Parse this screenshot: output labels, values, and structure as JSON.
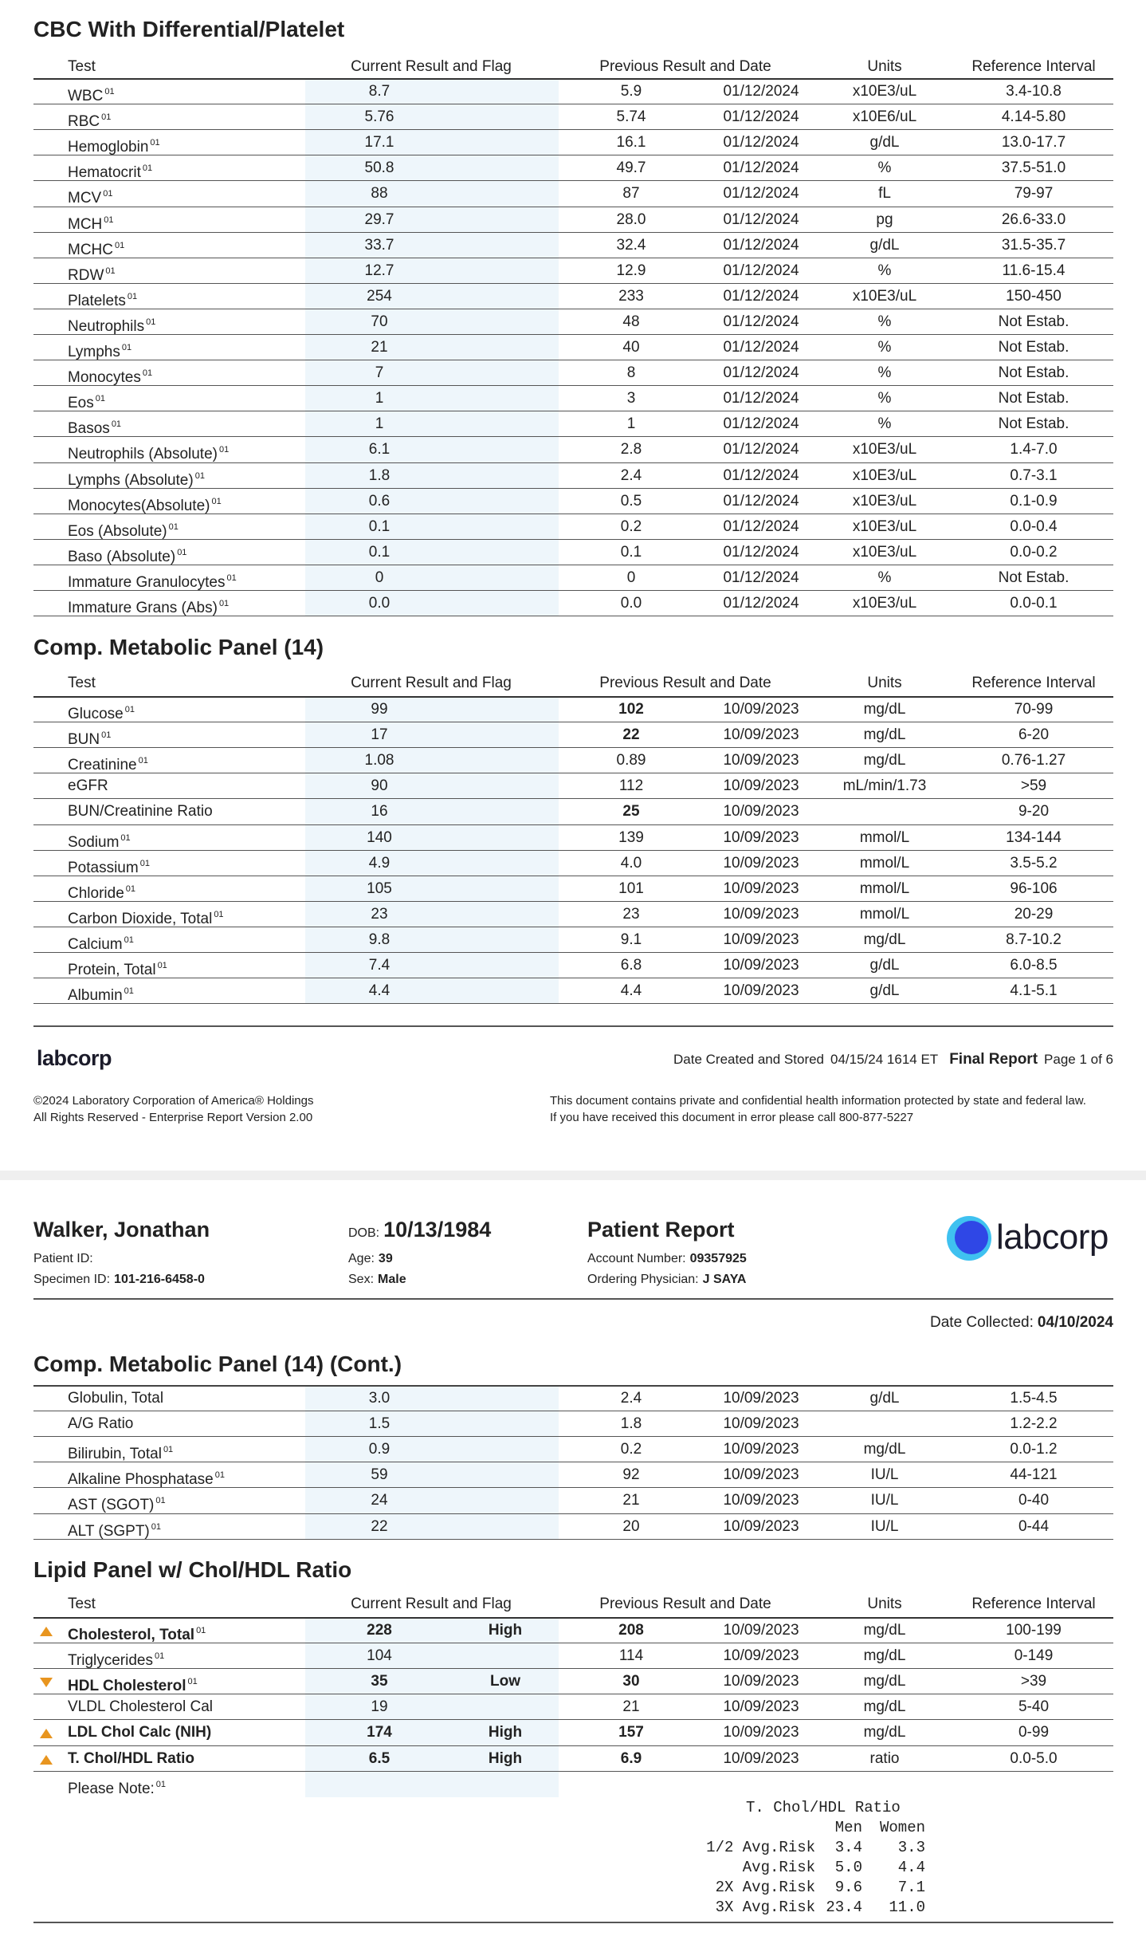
{
  "sections": [
    {
      "title": "CBC With Differential/Platelet",
      "header": [
        "Test",
        "Current Result and Flag",
        "Previous Result and Date",
        "Units",
        "Reference Interval"
      ],
      "rows": [
        {
          "test": "WBC",
          "note": "01",
          "current": "8.7",
          "prev": "5.9",
          "date": "01/12/2024",
          "units": "x10E3/uL",
          "ref": "3.4-10.8"
        },
        {
          "test": "RBC",
          "note": "01",
          "current": "5.76",
          "prev": "5.74",
          "date": "01/12/2024",
          "units": "x10E6/uL",
          "ref": "4.14-5.80"
        },
        {
          "test": "Hemoglobin",
          "note": "01",
          "current": "17.1",
          "prev": "16.1",
          "date": "01/12/2024",
          "units": "g/dL",
          "ref": "13.0-17.7"
        },
        {
          "test": "Hematocrit",
          "note": "01",
          "current": "50.8",
          "prev": "49.7",
          "date": "01/12/2024",
          "units": "%",
          "ref": "37.5-51.0"
        },
        {
          "test": "MCV",
          "note": "01",
          "current": "88",
          "prev": "87",
          "date": "01/12/2024",
          "units": "fL",
          "ref": "79-97"
        },
        {
          "test": "MCH",
          "note": "01",
          "current": "29.7",
          "prev": "28.0",
          "date": "01/12/2024",
          "units": "pg",
          "ref": "26.6-33.0"
        },
        {
          "test": "MCHC",
          "note": "01",
          "current": "33.7",
          "prev": "32.4",
          "date": "01/12/2024",
          "units": "g/dL",
          "ref": "31.5-35.7"
        },
        {
          "test": "RDW",
          "note": "01",
          "current": "12.7",
          "prev": "12.9",
          "date": "01/12/2024",
          "units": "%",
          "ref": "11.6-15.4"
        },
        {
          "test": "Platelets",
          "note": "01",
          "current": "254",
          "prev": "233",
          "date": "01/12/2024",
          "units": "x10E3/uL",
          "ref": "150-450"
        },
        {
          "test": "Neutrophils",
          "note": "01",
          "current": "70",
          "prev": "48",
          "date": "01/12/2024",
          "units": "%",
          "ref": "Not Estab."
        },
        {
          "test": "Lymphs",
          "note": "01",
          "current": "21",
          "prev": "40",
          "date": "01/12/2024",
          "units": "%",
          "ref": "Not Estab."
        },
        {
          "test": "Monocytes",
          "note": "01",
          "current": "7",
          "prev": "8",
          "date": "01/12/2024",
          "units": "%",
          "ref": "Not Estab."
        },
        {
          "test": "Eos",
          "note": "01",
          "current": "1",
          "prev": "3",
          "date": "01/12/2024",
          "units": "%",
          "ref": "Not Estab."
        },
        {
          "test": "Basos",
          "note": "01",
          "current": "1",
          "prev": "1",
          "date": "01/12/2024",
          "units": "%",
          "ref": "Not Estab."
        },
        {
          "test": "Neutrophils (Absolute)",
          "note": "01",
          "current": "6.1",
          "prev": "2.8",
          "date": "01/12/2024",
          "units": "x10E3/uL",
          "ref": "1.4-7.0"
        },
        {
          "test": "Lymphs (Absolute)",
          "note": "01",
          "current": "1.8",
          "prev": "2.4",
          "date": "01/12/2024",
          "units": "x10E3/uL",
          "ref": "0.7-3.1"
        },
        {
          "test": "Monocytes(Absolute)",
          "note": "01",
          "current": "0.6",
          "prev": "0.5",
          "date": "01/12/2024",
          "units": "x10E3/uL",
          "ref": "0.1-0.9"
        },
        {
          "test": "Eos (Absolute)",
          "note": "01",
          "current": "0.1",
          "prev": "0.2",
          "date": "01/12/2024",
          "units": "x10E3/uL",
          "ref": "0.0-0.4"
        },
        {
          "test": "Baso (Absolute)",
          "note": "01",
          "current": "0.1",
          "prev": "0.1",
          "date": "01/12/2024",
          "units": "x10E3/uL",
          "ref": "0.0-0.2"
        },
        {
          "test": "Immature Granulocytes",
          "note": "01",
          "current": "0",
          "prev": "0",
          "date": "01/12/2024",
          "units": "%",
          "ref": "Not Estab."
        },
        {
          "test": "Immature Grans (Abs)",
          "note": "01",
          "current": "0.0",
          "prev": "0.0",
          "date": "01/12/2024",
          "units": "x10E3/uL",
          "ref": "0.0-0.1"
        }
      ]
    },
    {
      "title": "Comp. Metabolic Panel (14)",
      "header": [
        "Test",
        "Current Result and Flag",
        "Previous Result and Date",
        "Units",
        "Reference Interval"
      ],
      "rows": [
        {
          "test": "Glucose",
          "note": "01",
          "current": "99",
          "prev": "102",
          "prev_bold": true,
          "date": "10/09/2023",
          "units": "mg/dL",
          "ref": "70-99"
        },
        {
          "test": "BUN",
          "note": "01",
          "current": "17",
          "prev": "22",
          "prev_bold": true,
          "date": "10/09/2023",
          "units": "mg/dL",
          "ref": "6-20"
        },
        {
          "test": "Creatinine",
          "note": "01",
          "current": "1.08",
          "prev": "0.89",
          "date": "10/09/2023",
          "units": "mg/dL",
          "ref": "0.76-1.27"
        },
        {
          "test": "eGFR",
          "current": "90",
          "prev": "112",
          "date": "10/09/2023",
          "units": "mL/min/1.73",
          "ref": ">59"
        },
        {
          "test": "BUN/Creatinine Ratio",
          "current": "16",
          "prev": "25",
          "prev_bold": true,
          "date": "10/09/2023",
          "ref": "9-20"
        },
        {
          "test": "Sodium",
          "note": "01",
          "current": "140",
          "prev": "139",
          "date": "10/09/2023",
          "units": "mmol/L",
          "ref": "134-144"
        },
        {
          "test": "Potassium",
          "note": "01",
          "current": "4.9",
          "prev": "4.0",
          "date": "10/09/2023",
          "units": "mmol/L",
          "ref": "3.5-5.2"
        },
        {
          "test": "Chloride",
          "note": "01",
          "current": "105",
          "prev": "101",
          "date": "10/09/2023",
          "units": "mmol/L",
          "ref": "96-106"
        },
        {
          "test": "Carbon Dioxide, Total",
          "note": "01",
          "current": "23",
          "prev": "23",
          "date": "10/09/2023",
          "units": "mmol/L",
          "ref": "20-29"
        },
        {
          "test": "Calcium",
          "note": "01",
          "current": "9.8",
          "prev": "9.1",
          "date": "10/09/2023",
          "units": "mg/dL",
          "ref": "8.7-10.2"
        },
        {
          "test": "Protein, Total",
          "note": "01",
          "current": "7.4",
          "prev": "6.8",
          "date": "10/09/2023",
          "units": "g/dL",
          "ref": "6.0-8.5"
        },
        {
          "test": "Albumin",
          "note": "01",
          "current": "4.4",
          "prev": "4.4",
          "date": "10/09/2023",
          "units": "g/dL",
          "ref": "4.1-5.1"
        }
      ]
    },
    {
      "title": "Comp. Metabolic Panel (14) (Cont.)",
      "rows": [
        {
          "test": "Globulin, Total",
          "current": "3.0",
          "prev": "2.4",
          "date": "10/09/2023",
          "units": "g/dL",
          "ref": "1.5-4.5"
        },
        {
          "test": "A/G Ratio",
          "current": "1.5",
          "prev": "1.8",
          "date": "10/09/2023",
          "ref": "1.2-2.2"
        },
        {
          "test": "Bilirubin, Total",
          "note": "01",
          "current": "0.9",
          "prev": "0.2",
          "date": "10/09/2023",
          "units": "mg/dL",
          "ref": "0.0-1.2"
        },
        {
          "test": "Alkaline Phosphatase",
          "note": "01",
          "current": "59",
          "prev": "92",
          "date": "10/09/2023",
          "units": "IU/L",
          "ref": "44-121"
        },
        {
          "test": "AST (SGOT)",
          "note": "01",
          "current": "24",
          "prev": "21",
          "date": "10/09/2023",
          "units": "IU/L",
          "ref": "0-40"
        },
        {
          "test": "ALT (SGPT)",
          "note": "01",
          "current": "22",
          "prev": "20",
          "date": "10/09/2023",
          "units": "IU/L",
          "ref": "0-44"
        }
      ]
    },
    {
      "title": "Lipid Panel w/ Chol/HDL Ratio",
      "header": [
        "Test",
        "Current Result and Flag",
        "Previous Result and Date",
        "Units",
        "Reference Interval"
      ],
      "rows": [
        {
          "test": "Cholesterol, Total",
          "note": "01",
          "current": "228",
          "flag": "High",
          "arrow": "up",
          "prev": "208",
          "prev_bold": true,
          "date": "10/09/2023",
          "units": "mg/dL",
          "ref": "100-199"
        },
        {
          "test": "Triglycerides",
          "note": "01",
          "current": "104",
          "prev": "114",
          "date": "10/09/2023",
          "units": "mg/dL",
          "ref": "0-149"
        },
        {
          "test": "HDL Cholesterol",
          "note": "01",
          "current": "35",
          "flag": "Low",
          "arrow": "down",
          "prev": "30",
          "prev_bold": true,
          "date": "10/09/2023",
          "units": "mg/dL",
          "ref": ">39"
        },
        {
          "test": "VLDL Cholesterol Cal",
          "current": "19",
          "prev": "21",
          "date": "10/09/2023",
          "units": "mg/dL",
          "ref": "5-40"
        },
        {
          "test": "LDL Chol Calc (NIH)",
          "current": "174",
          "flag": "High",
          "arrow": "up",
          "prev": "157",
          "prev_bold": true,
          "date": "10/09/2023",
          "units": "mg/dL",
          "ref": "0-99"
        },
        {
          "test": "T. Chol/HDL Ratio",
          "current": "6.5",
          "flag": "High",
          "arrow": "up",
          "prev": "6.9",
          "prev_bold": true,
          "date": "10/09/2023",
          "units": "ratio",
          "ref": "0.0-5.0"
        },
        {
          "test": "Please Note:",
          "note": "01"
        }
      ]
    }
  ],
  "footer": {
    "logo": "labcorp",
    "created_label": "Date Created and Stored",
    "created": "04/15/24 1614 ET",
    "status": "Final Report",
    "page": "Page 1 of 6",
    "copyright": [
      "©2024 Laboratory Corporation of America® Holdings",
      "All Rights Reserved - Enterprise Report Version 2.00"
    ],
    "notice": [
      "This document contains private and confidential health information protected by state and federal law.",
      "If you have received this document in error please call 800-877-5227"
    ]
  },
  "header": {
    "name": "Walker, Jonathan",
    "dob_label": "DOB:",
    "dob": "10/13/1984",
    "report": "Patient Report",
    "logo": "labcorp",
    "patient_id_label": "Patient ID:",
    "specimen_label": "Specimen ID:",
    "specimen": "101-216-6458-0",
    "age_label": "Age:",
    "age": "39",
    "sex_label": "Sex:",
    "sex": "Male",
    "account_label": "Account Number:",
    "account": "09357925",
    "physician_label": "Ordering Physician:",
    "physician": "J SAYA",
    "collected_label": "Date Collected:",
    "collected": "04/10/2024"
  },
  "ratio_table": {
    "title": "T. Chol/HDL Ratio",
    "columns": [
      "Men",
      "Women"
    ],
    "rows": [
      {
        "label": "1/2 Avg.Risk",
        "values": [
          "3.4",
          "3.3"
        ]
      },
      {
        "label": "Avg.Risk",
        "values": [
          "5.0",
          "4.4"
        ]
      },
      {
        "label": "2X Avg.Risk",
        "values": [
          "9.6",
          "7.1"
        ]
      },
      {
        "label": "3X Avg.Risk",
        "values": [
          "23.4",
          "11.0"
        ]
      }
    ]
  }
}
